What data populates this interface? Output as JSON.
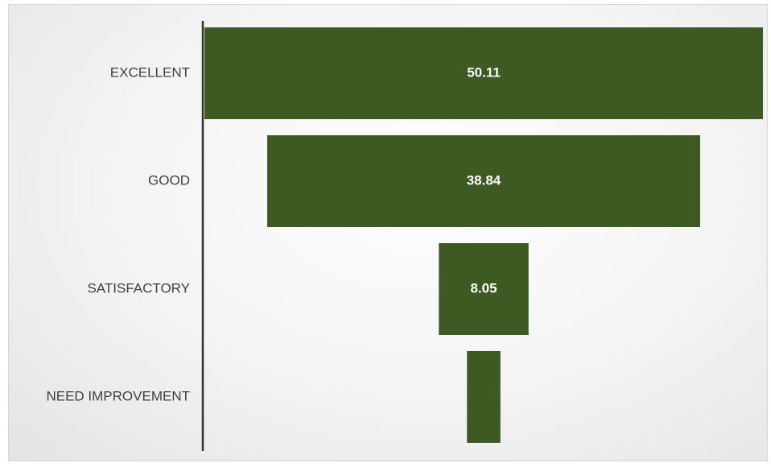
{
  "chart_data": {
    "type": "bar",
    "orientation": "funnel",
    "categories": [
      "EXCELLENT",
      "GOOD",
      "SATISFACTORY",
      "NEED IMPROVEMENT"
    ],
    "values": [
      50.11,
      38.84,
      8.05,
      3.0
    ],
    "data_labels": [
      "50.11",
      "38.84",
      "8.05",
      ""
    ],
    "bar_color": "#3d5a23",
    "title": "",
    "xlabel": "",
    "ylabel": "",
    "grid": false,
    "legend": "none"
  }
}
